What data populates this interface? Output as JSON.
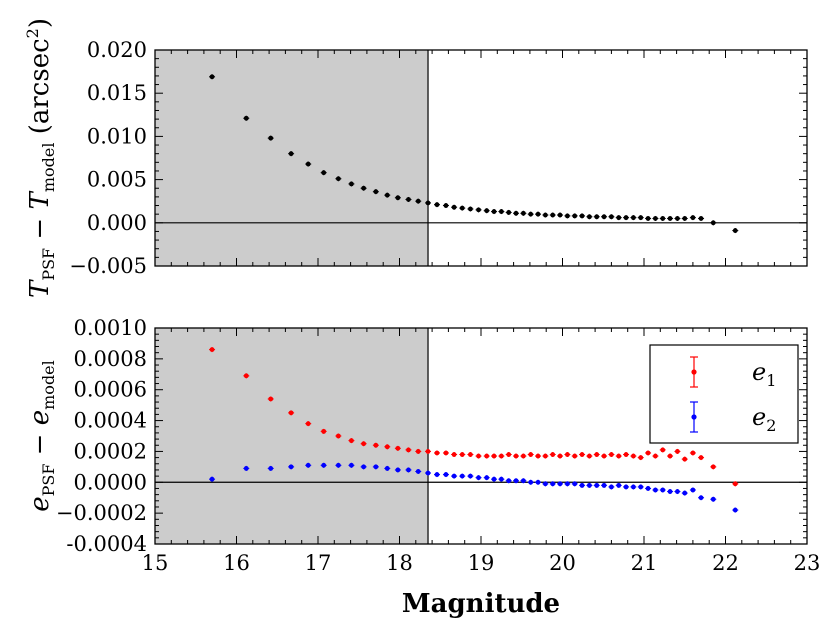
{
  "chart_data": [
    {
      "type": "scatter",
      "title": "",
      "ylabel": "T_PSF − T_model (arcsec²)",
      "ylabel_parts": {
        "main": "T",
        "sub1": "PSF",
        "mid": " − ",
        "main2": "T",
        "sub2": "model",
        "unit": " (arcsec",
        "unit_sup": "2",
        "unit_close": ")"
      },
      "xlim": [
        15,
        23
      ],
      "ylim": [
        -0.005,
        0.02
      ],
      "yticks": [
        -0.005,
        0.0,
        0.005,
        0.01,
        0.015,
        0.02
      ],
      "ytick_labels": [
        "−0.005",
        "0.000",
        "0.005",
        "0.010",
        "0.015",
        "0.020"
      ],
      "shaded_region": [
        15,
        18.35
      ],
      "vertical_line": 18.35,
      "horizontal_line": 0.0,
      "series": [
        {
          "color": "#000000",
          "x": [
            15.7,
            16.12,
            16.42,
            16.67,
            16.88,
            17.07,
            17.25,
            17.41,
            17.56,
            17.71,
            17.85,
            17.98,
            18.11,
            18.23,
            18.35,
            18.46,
            18.57,
            18.67,
            18.77,
            18.87,
            18.97,
            19.07,
            19.16,
            19.25,
            19.34,
            19.43,
            19.52,
            19.61,
            19.7,
            19.79,
            19.88,
            19.97,
            20.06,
            20.15,
            20.24,
            20.33,
            20.42,
            20.51,
            20.6,
            20.69,
            20.78,
            20.87,
            20.96,
            21.05,
            21.14,
            21.23,
            21.32,
            21.41,
            21.5,
            21.6,
            21.7,
            21.85,
            22.12
          ],
          "y": [
            0.0169,
            0.0121,
            0.0098,
            0.008,
            0.0068,
            0.0058,
            0.0051,
            0.0045,
            0.004,
            0.0036,
            0.0032,
            0.0029,
            0.0027,
            0.0025,
            0.0023,
            0.0021,
            0.002,
            0.0018,
            0.0017,
            0.0016,
            0.0015,
            0.0014,
            0.0013,
            0.0013,
            0.0012,
            0.0011,
            0.0011,
            0.001,
            0.001,
            0.0009,
            0.0009,
            0.0009,
            0.0008,
            0.0008,
            0.0008,
            0.0007,
            0.0007,
            0.0007,
            0.0007,
            0.0006,
            0.0006,
            0.0006,
            0.0006,
            0.0005,
            0.0005,
            0.0005,
            0.0005,
            0.0005,
            0.0005,
            0.0006,
            0.0005,
            0.0,
            -0.0009
          ]
        }
      ]
    },
    {
      "type": "scatter",
      "title": "",
      "xlabel": "Magnitude",
      "ylabel": "e_PSF − e_model",
      "ylabel_parts": {
        "main": "e",
        "sub1": "PSF",
        "mid": " − ",
        "main2": "e",
        "sub2": "model"
      },
      "xlim": [
        15,
        23
      ],
      "ylim": [
        -0.0004,
        0.001
      ],
      "xticks": [
        15,
        16,
        17,
        18,
        19,
        20,
        21,
        22,
        23
      ],
      "xtick_labels": [
        "15",
        "16",
        "17",
        "18",
        "19",
        "20",
        "21",
        "22",
        "23"
      ],
      "yticks": [
        -0.0004,
        -0.0002,
        0.0,
        0.0002,
        0.0004,
        0.0006,
        0.0008,
        0.001
      ],
      "ytick_labels": [
        "-0.0004",
        "−0.0002",
        "0.0000",
        "0.0002",
        "0.0004",
        "0.0006",
        "0.0008",
        "0.0010"
      ],
      "shaded_region": [
        15,
        18.35
      ],
      "vertical_line": 18.35,
      "horizontal_line": 0.0,
      "legend": {
        "placement": "top-right",
        "entries": [
          {
            "label": "e",
            "sub": "1",
            "color": "#ff0000"
          },
          {
            "label": "e",
            "sub": "2",
            "color": "#0000ff"
          }
        ]
      },
      "series": [
        {
          "name": "e1",
          "color": "#ff0000",
          "x": [
            15.7,
            16.12,
            16.42,
            16.67,
            16.88,
            17.07,
            17.25,
            17.41,
            17.56,
            17.71,
            17.85,
            17.98,
            18.11,
            18.23,
            18.35,
            18.46,
            18.57,
            18.67,
            18.77,
            18.87,
            18.97,
            19.07,
            19.16,
            19.25,
            19.34,
            19.43,
            19.52,
            19.61,
            19.7,
            19.79,
            19.88,
            19.97,
            20.06,
            20.15,
            20.24,
            20.33,
            20.42,
            20.51,
            20.6,
            20.69,
            20.78,
            20.87,
            20.96,
            21.05,
            21.14,
            21.23,
            21.32,
            21.41,
            21.5,
            21.6,
            21.7,
            21.85,
            22.12
          ],
          "y": [
            0.00086,
            0.00069,
            0.00054,
            0.00045,
            0.00038,
            0.00033,
            0.0003,
            0.00027,
            0.00025,
            0.00024,
            0.00023,
            0.00022,
            0.00021,
            0.0002,
            0.0002,
            0.00019,
            0.00019,
            0.00018,
            0.00018,
            0.00018,
            0.00017,
            0.00017,
            0.00017,
            0.00017,
            0.00018,
            0.00017,
            0.00017,
            0.00018,
            0.00017,
            0.00017,
            0.00018,
            0.00017,
            0.00018,
            0.00017,
            0.00018,
            0.00017,
            0.00018,
            0.00017,
            0.00018,
            0.00017,
            0.00018,
            0.00017,
            0.00016,
            0.00019,
            0.00017,
            0.00021,
            0.00017,
            0.0002,
            0.00015,
            0.00019,
            0.00016,
            0.0001,
            -1e-05
          ]
        },
        {
          "name": "e2",
          "color": "#0000ff",
          "x": [
            15.7,
            16.12,
            16.42,
            16.67,
            16.88,
            17.07,
            17.25,
            17.41,
            17.56,
            17.71,
            17.85,
            17.98,
            18.11,
            18.23,
            18.35,
            18.46,
            18.57,
            18.67,
            18.77,
            18.87,
            18.97,
            19.07,
            19.16,
            19.25,
            19.34,
            19.43,
            19.52,
            19.61,
            19.7,
            19.79,
            19.88,
            19.97,
            20.06,
            20.15,
            20.24,
            20.33,
            20.42,
            20.51,
            20.6,
            20.69,
            20.78,
            20.87,
            20.96,
            21.05,
            21.14,
            21.23,
            21.32,
            21.41,
            21.5,
            21.6,
            21.7,
            21.85,
            22.12
          ],
          "y": [
            2e-05,
            9e-05,
            9e-05,
            0.0001,
            0.00011,
            0.00011,
            0.00011,
            0.00011,
            0.0001,
            0.0001,
            9e-05,
            8e-05,
            8e-05,
            7e-05,
            6e-05,
            5e-05,
            5e-05,
            4e-05,
            4e-05,
            4e-05,
            3e-05,
            3e-05,
            2e-05,
            2e-05,
            1e-05,
            1e-05,
            1e-05,
            0.0,
            0.0,
            -1e-05,
            -1e-05,
            -1e-05,
            -1e-05,
            -1e-05,
            -2e-05,
            -2e-05,
            -2e-05,
            -2e-05,
            -3e-05,
            -2e-05,
            -3e-05,
            -3e-05,
            -3e-05,
            -4e-05,
            -5e-05,
            -5e-05,
            -6e-05,
            -6e-05,
            -7e-05,
            -5e-05,
            -0.0001,
            -0.00011,
            -0.00018
          ]
        }
      ]
    }
  ]
}
